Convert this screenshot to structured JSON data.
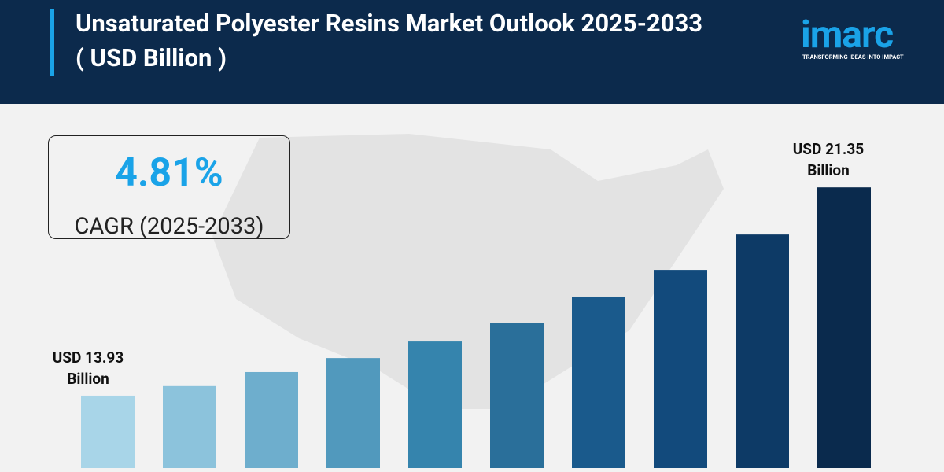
{
  "header": {
    "title": "Unsaturated Polyester Resins Market Outlook 2025-2033 ( USD Billion )",
    "logo": "imarc",
    "tagline": "TRANSFORMING IDEAS INTO IMPACT"
  },
  "cagr": {
    "value": "4.81%",
    "label": "CAGR (2025-2033)"
  },
  "chart_data": {
    "type": "bar",
    "categories": [
      null,
      null,
      null,
      null,
      null,
      null,
      null,
      null,
      null,
      null
    ],
    "values": [
      13.93,
      14.27,
      14.77,
      15.27,
      15.86,
      16.53,
      17.46,
      18.41,
      19.67,
      21.35
    ],
    "value_labels": [
      "USD 13.93 Billion",
      null,
      null,
      null,
      null,
      null,
      null,
      null,
      null,
      "USD 21.35 Billion"
    ],
    "colors": [
      "#a8d5e8",
      "#8cc3dc",
      "#6eaecd",
      "#5199bd",
      "#3584ad",
      "#2a6f9a",
      "#1a5a8c",
      "#124a7c",
      "#0d3a66",
      "#0a2a4d"
    ],
    "ylim": [
      11.35,
      22
    ]
  }
}
